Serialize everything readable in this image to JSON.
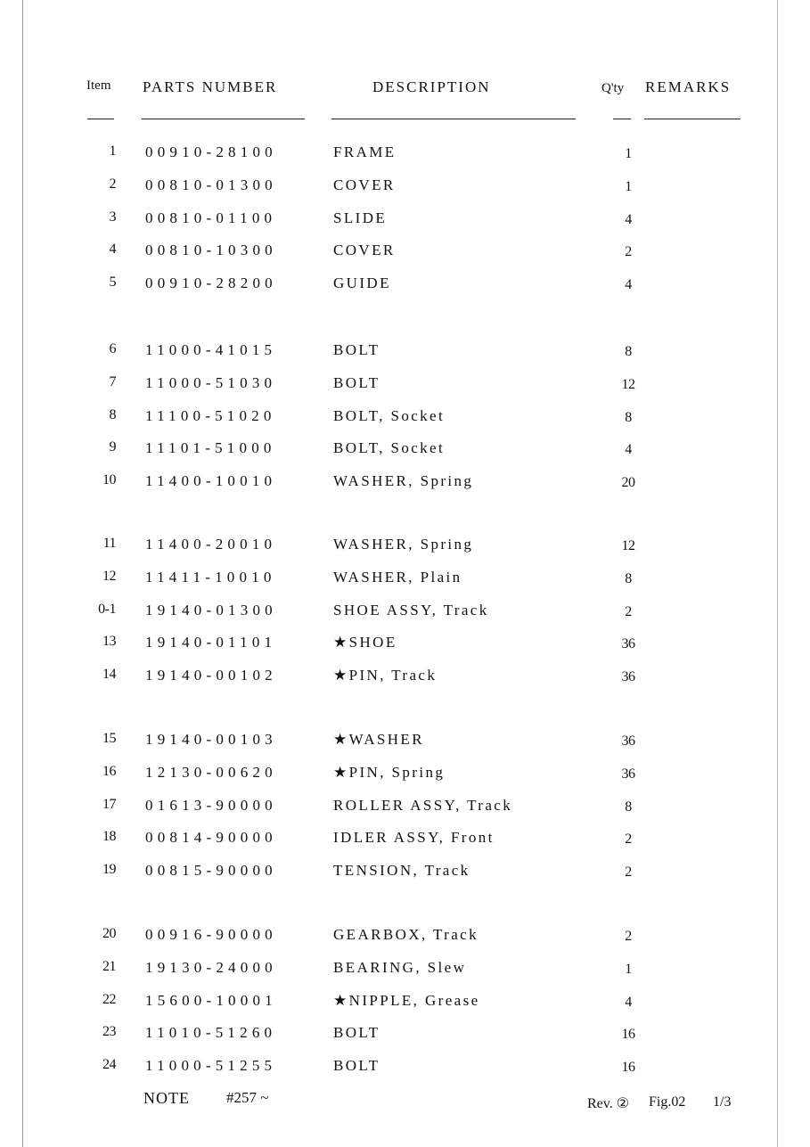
{
  "headers": {
    "item": "Item",
    "parts_number": "PARTS NUMBER",
    "description": "DESCRIPTION",
    "qty": "Q'ty",
    "remarks": "REMARKS"
  },
  "groups": [
    [
      {
        "item": "1",
        "pn": "00910-28100",
        "desc": "FRAME",
        "qty": "1"
      },
      {
        "item": "2",
        "pn": "00810-01300",
        "desc": "COVER",
        "qty": "1"
      },
      {
        "item": "3",
        "pn": "00810-01100",
        "desc": "SLIDE",
        "qty": "4"
      },
      {
        "item": "4",
        "pn": "00810-10300",
        "desc": "COVER",
        "qty": "2"
      },
      {
        "item": "5",
        "pn": "00910-28200",
        "desc": "GUIDE",
        "qty": "4"
      }
    ],
    [
      {
        "item": "6",
        "pn": "11000-41015",
        "desc": "BOLT",
        "qty": "8"
      },
      {
        "item": "7",
        "pn": "11000-51030",
        "desc": "BOLT",
        "qty": "12"
      },
      {
        "item": "8",
        "pn": "11100-51020",
        "desc": "BOLT, Socket",
        "qty": "8"
      },
      {
        "item": "9",
        "pn": "11101-51000",
        "desc": "BOLT, Socket",
        "qty": "4"
      },
      {
        "item": "10",
        "pn": "11400-10010",
        "desc": "WASHER, Spring",
        "qty": "20"
      }
    ],
    [
      {
        "item": "11",
        "pn": "11400-20010",
        "desc": "WASHER, Spring",
        "qty": "12"
      },
      {
        "item": "12",
        "pn": "11411-10010",
        "desc": "WASHER, Plain",
        "qty": "8"
      },
      {
        "item": "0-1",
        "pn": "19140-01300",
        "desc": "SHOE ASSY, Track",
        "qty": "2"
      },
      {
        "item": "13",
        "pn": "19140-01101",
        "desc": "★SHOE",
        "qty": "36"
      },
      {
        "item": "14",
        "pn": "19140-00102",
        "desc": "★PIN, Track",
        "qty": "36"
      }
    ],
    [
      {
        "item": "15",
        "pn": "19140-00103",
        "desc": "★WASHER",
        "qty": "36"
      },
      {
        "item": "16",
        "pn": "12130-00620",
        "desc": "★PIN, Spring",
        "qty": "36"
      },
      {
        "item": "17",
        "pn": "01613-90000",
        "desc": "ROLLER ASSY, Track",
        "qty": "8"
      },
      {
        "item": "18",
        "pn": "00814-90000",
        "desc": "IDLER ASSY, Front",
        "qty": "2"
      },
      {
        "item": "19",
        "pn": "00815-90000",
        "desc": "TENSION, Track",
        "qty": "2"
      }
    ],
    [
      {
        "item": "20",
        "pn": "00916-90000",
        "desc": "GEARBOX, Track",
        "qty": "2"
      },
      {
        "item": "21",
        "pn": "19130-24000",
        "desc": "BEARING, Slew",
        "qty": "1"
      },
      {
        "item": "22",
        "pn": "15600-10001",
        "desc": "★NIPPLE, Grease",
        "qty": "4"
      },
      {
        "item": "23",
        "pn": "11010-51260",
        "desc": "BOLT",
        "qty": "16"
      },
      {
        "item": "24",
        "pn": "11000-51255",
        "desc": "BOLT",
        "qty": "16"
      }
    ]
  ],
  "footer": {
    "note_label": "NOTE",
    "note_value": "#257 ~",
    "revision": "Rev. ②",
    "figure": "Fig.02",
    "page": "1/3"
  }
}
